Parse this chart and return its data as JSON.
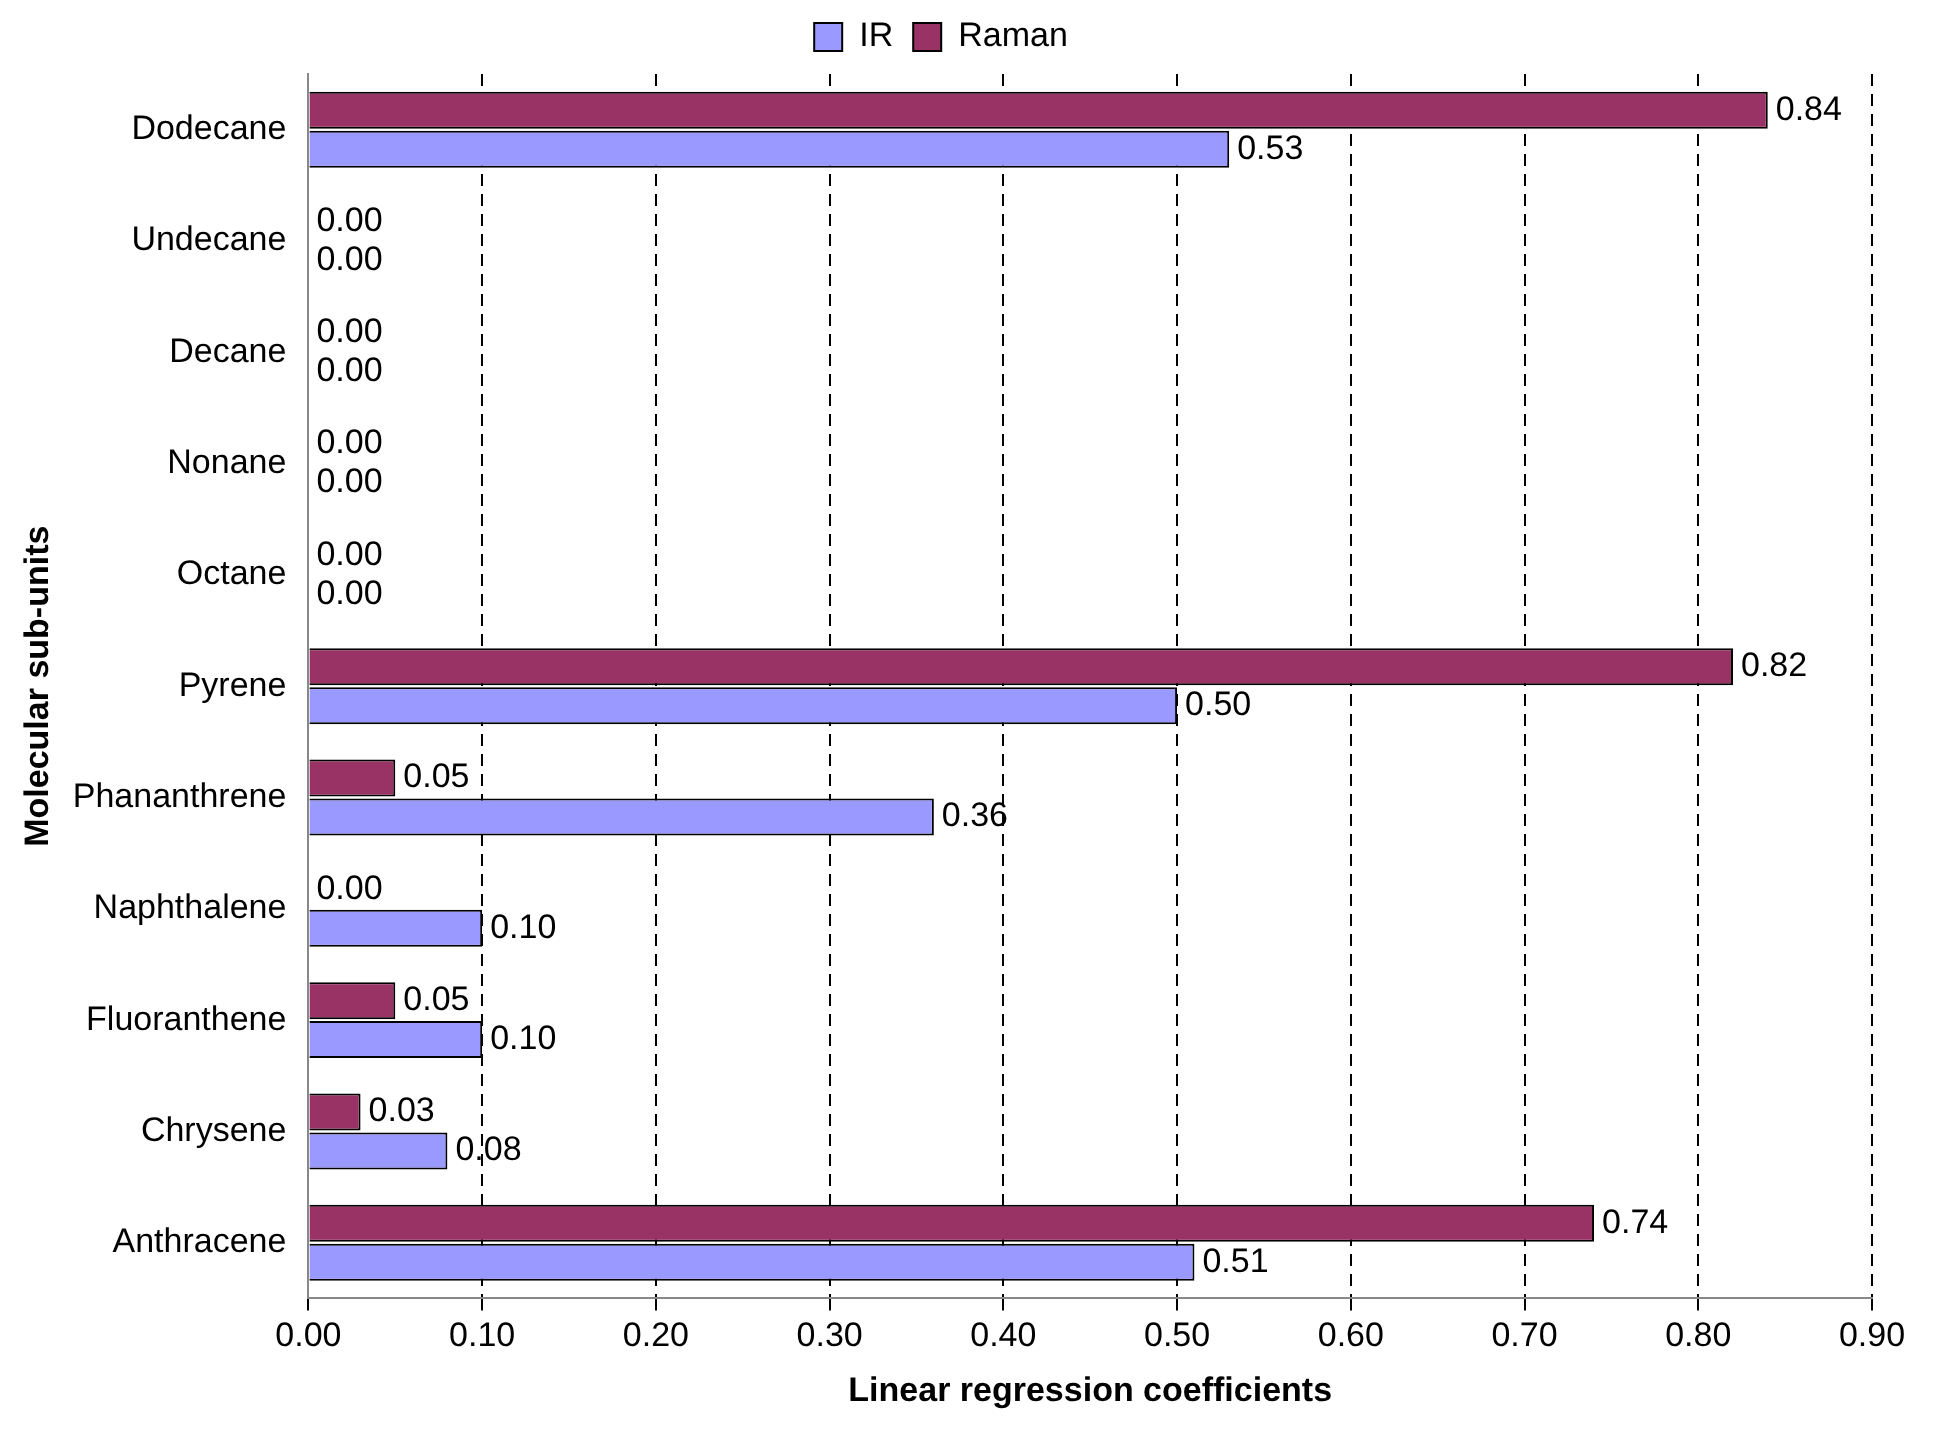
{
  "chart_data": {
    "type": "bar",
    "orientation": "horizontal",
    "xlabel": "Linear regression coefficients",
    "ylabel": "Molecular sub-units",
    "categories": [
      "Dodecane",
      "Undecane",
      "Decane",
      "Nonane",
      "Octane",
      "Pyrene",
      "Phananthrene",
      "Naphthalene",
      "Fluoranthene",
      "Chrysene",
      "Anthracene"
    ],
    "series": [
      {
        "name": "IR",
        "color": "#9999ff",
        "values": [
          0.53,
          0,
          0,
          0,
          0,
          0.5,
          0.36,
          0.1,
          0.1,
          0.08,
          0.51
        ],
        "value_labels": [
          "0.53",
          "0.00",
          "0.00",
          "0.00",
          "0.00",
          "0.50",
          "0.36",
          "0.10",
          "0.10",
          "0.08",
          "0.51"
        ]
      },
      {
        "name": "Raman",
        "color": "#993366",
        "values": [
          0.84,
          0,
          0,
          0,
          0,
          0.82,
          0.05,
          0,
          0.05,
          0.03,
          0.74
        ],
        "value_labels": [
          "0.84",
          "0.00",
          "0.00",
          "0.00",
          "0.00",
          "0.82",
          "0.05",
          "0.00",
          "0.05",
          "0.03",
          "0.74"
        ]
      }
    ],
    "xlim": [
      0,
      0.9
    ],
    "xticks": [
      {
        "value": 0,
        "label": "0.00"
      },
      {
        "value": 0.1,
        "label": "0.10"
      },
      {
        "value": 0.2,
        "label": "0.20"
      },
      {
        "value": 0.3,
        "label": "0.30"
      },
      {
        "value": 0.4,
        "label": "0.40"
      },
      {
        "value": 0.5,
        "label": "0.50"
      },
      {
        "value": 0.6,
        "label": "0.60"
      },
      {
        "value": 0.7,
        "label": "0.70"
      },
      {
        "value": 0.8,
        "label": "0.80"
      },
      {
        "value": 0.9,
        "label": "0.90"
      }
    ],
    "grid": "x",
    "legend": "top"
  }
}
